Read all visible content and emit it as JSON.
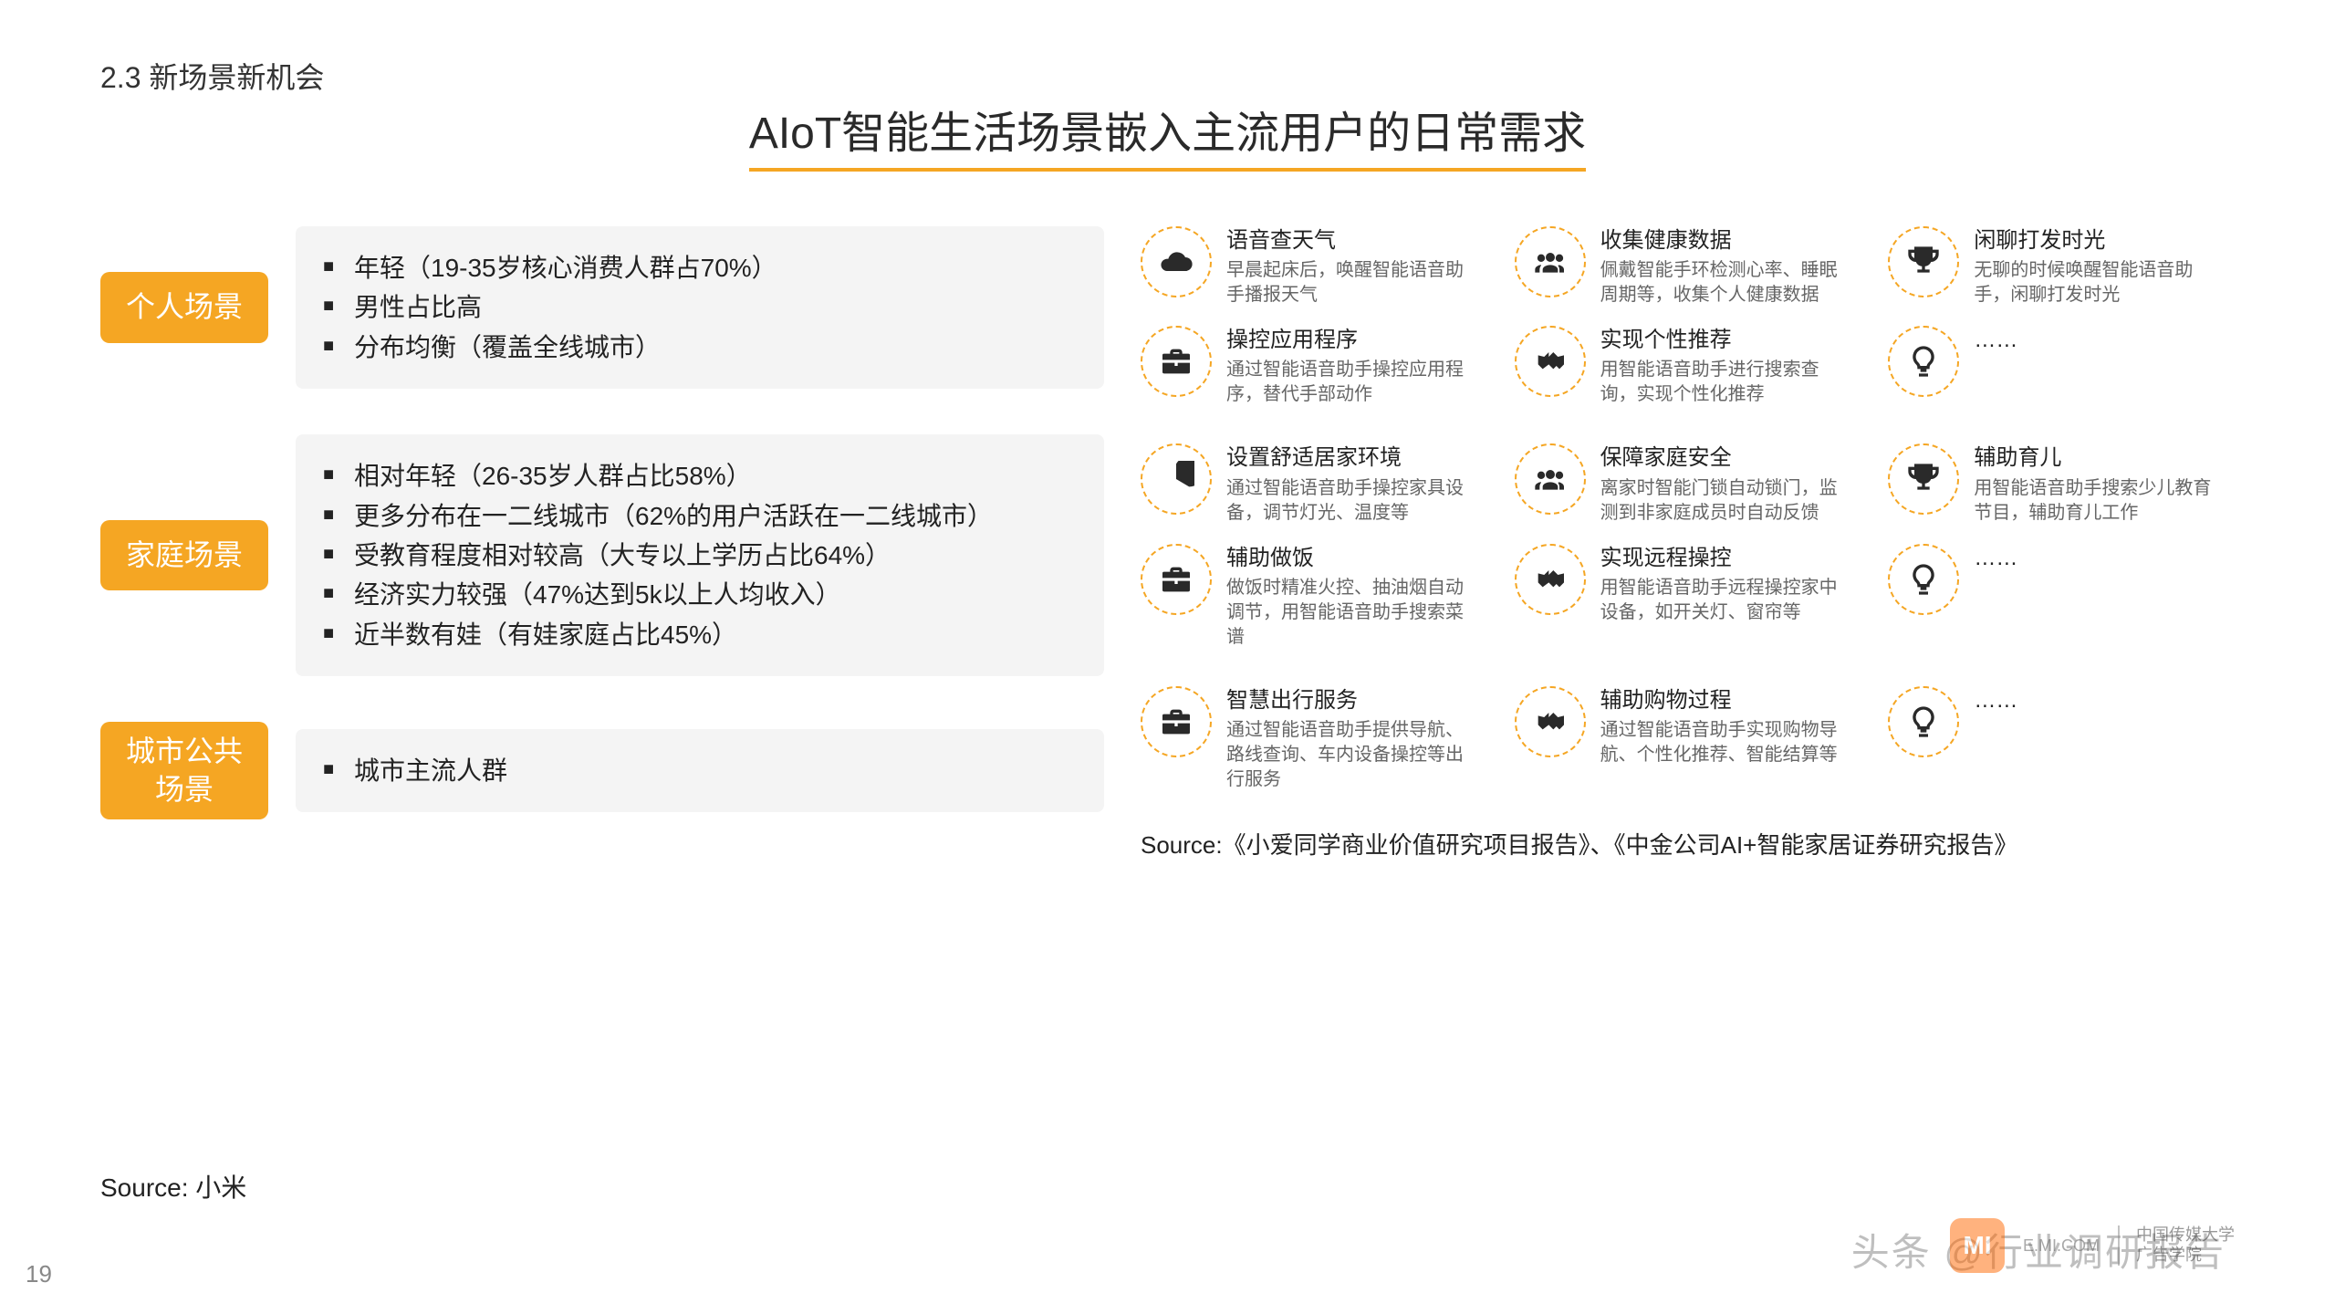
{
  "section_label": "2.3 新场景新机会",
  "title": "AIoT智能生活场景嵌入主流用户的日常需求",
  "colors": {
    "accent": "#f5a623",
    "bg": "#ffffff",
    "box_bg": "#f4f4f4",
    "text": "#222222",
    "subtext": "#666666"
  },
  "scenes": [
    {
      "tag": "个人场景",
      "bullets": [
        "年轻（19-35岁核心消费人群占70%）",
        "男性占比高",
        "分布均衡（覆盖全线城市）"
      ]
    },
    {
      "tag": "家庭场景",
      "bullets": [
        "相对年轻（26-35岁人群占比58%）",
        "更多分布在一二线城市（62%的用户活跃在一二线城市）",
        "受教育程度相对较高（大专以上学历占比64%）",
        "经济实力较强（47%达到5k以上人均收入）",
        "近半数有娃（有娃家庭占比45%）"
      ]
    },
    {
      "tag": "城市公共场景",
      "bullets": [
        "城市主流人群"
      ]
    }
  ],
  "icon_rows": [
    [
      {
        "icon": "cloud",
        "title": "语音查天气",
        "desc": "早晨起床后，唤醒智能语音助手播报天气"
      },
      {
        "icon": "people",
        "title": "收集健康数据",
        "desc": "佩戴智能手环检测心率、睡眠周期等，收集个人健康数据"
      },
      {
        "icon": "trophy",
        "title": "闲聊打发时光",
        "desc": "无聊的时候唤醒智能语音助手，闲聊打发时光"
      },
      {
        "icon": "briefcase",
        "title": "操控应用程序",
        "desc": "通过智能语音助手操控应用程序，替代手部动作"
      },
      {
        "icon": "handshake",
        "title": "实现个性推荐",
        "desc": "用智能语音助手进行搜索查询，实现个性化推荐"
      },
      {
        "icon": "bulb",
        "title": "……",
        "desc": ""
      }
    ],
    [
      {
        "icon": "pie",
        "title": "设置舒适居家环境",
        "desc": "通过智能语音助手操控家具设备，调节灯光、温度等"
      },
      {
        "icon": "people",
        "title": "保障家庭安全",
        "desc": "离家时智能门锁自动锁门，监测到非家庭成员时自动反馈"
      },
      {
        "icon": "trophy",
        "title": "辅助育儿",
        "desc": "用智能语音助手搜索少儿教育节目，辅助育儿工作"
      },
      {
        "icon": "briefcase",
        "title": "辅助做饭",
        "desc": "做饭时精准火控、抽油烟自动调节，用智能语音助手搜索菜谱"
      },
      {
        "icon": "handshake",
        "title": "实现远程操控",
        "desc": "用智能语音助手远程操控家中设备，如开关灯、窗帘等"
      },
      {
        "icon": "bulb",
        "title": "……",
        "desc": ""
      }
    ],
    [
      {
        "icon": "briefcase",
        "title": "智慧出行服务",
        "desc": "通过智能语音助手提供导航、路线查询、车内设备操控等出行服务"
      },
      {
        "icon": "handshake",
        "title": "辅助购物过程",
        "desc": "通过智能语音助手实现购物导航、个性化推荐、智能结算等"
      },
      {
        "icon": "bulb",
        "title": "……",
        "desc": ""
      }
    ]
  ],
  "source_left": "Source: 小米",
  "source_right": "Source:《小爱同学商业价值研究项目报告》、《中金公司AI+智能家居证券研究报告》",
  "page_number": "19",
  "watermark": "头条 @行业调研报告",
  "footer": {
    "mi_text": "E.MI.COM",
    "cuc_line1": "中国传媒大学",
    "cuc_line2": "广告学院"
  }
}
